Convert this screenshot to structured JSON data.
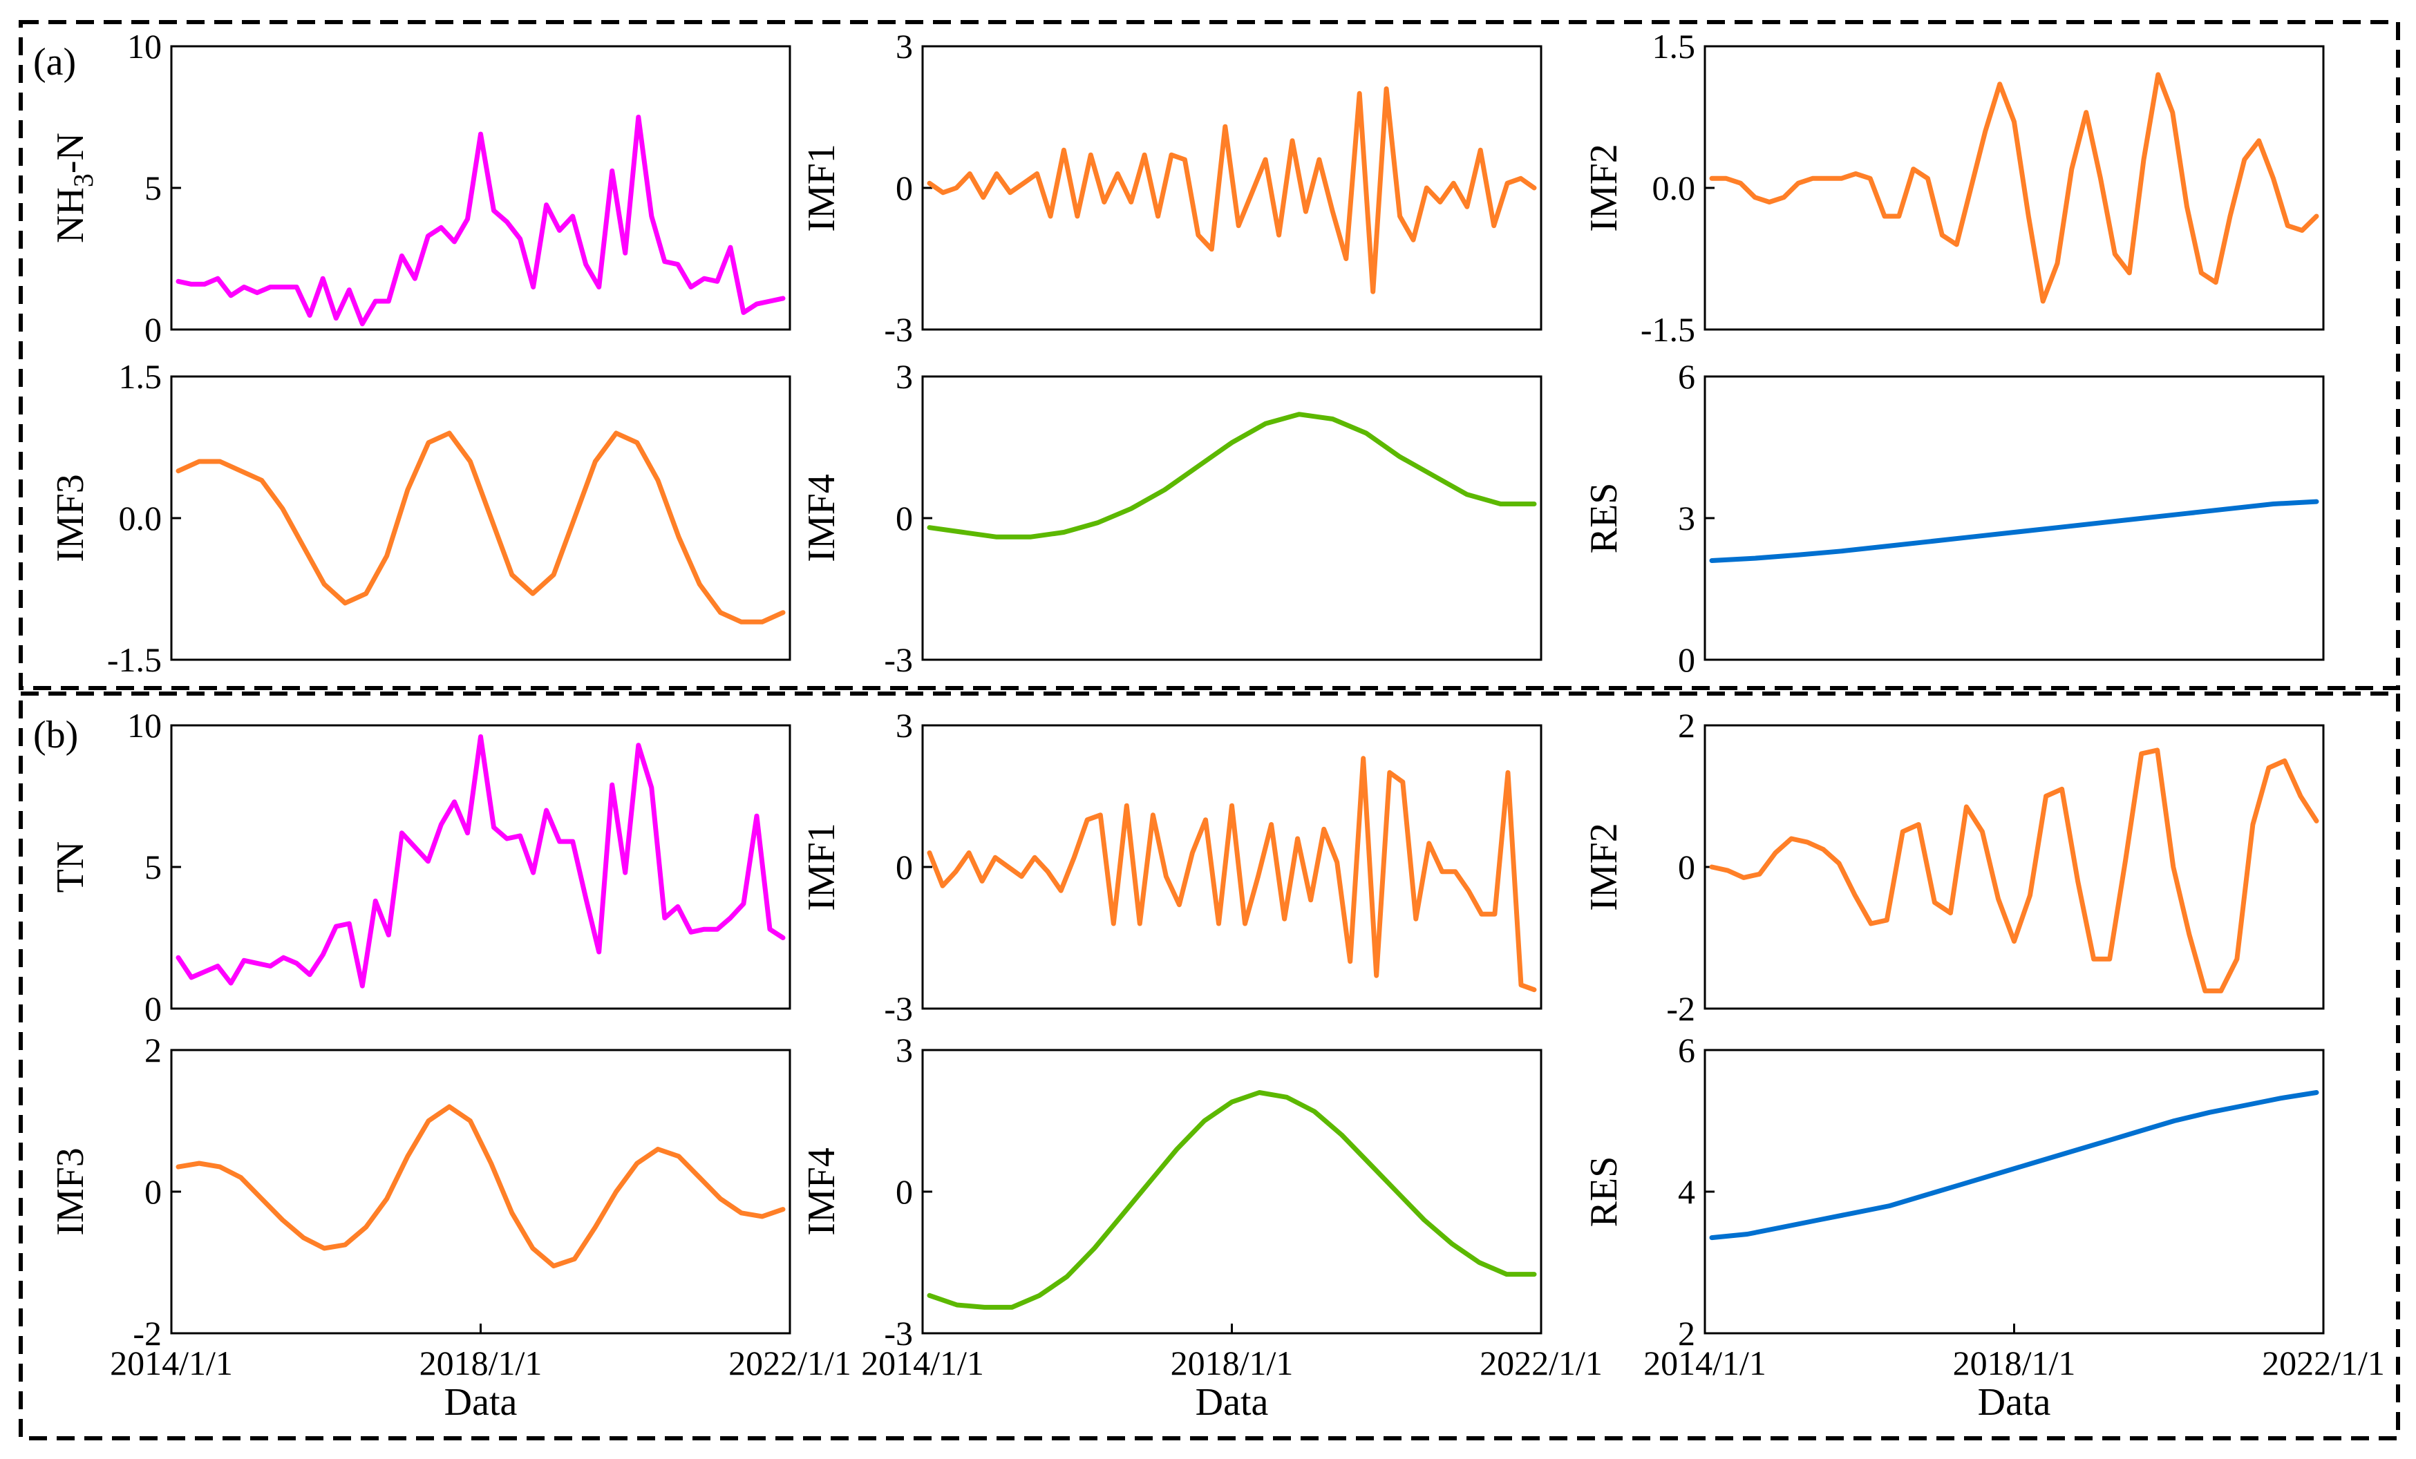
{
  "figure": {
    "panel_labels": [
      "(a)",
      "(b)"
    ],
    "colors": {
      "magenta": "#ff00ff",
      "orange": "#ff7f27",
      "green": "#5cb800",
      "blue": "#0070d0"
    }
  },
  "chart_data": [
    {
      "id": "a1",
      "type": "line",
      "ylabel": "NH3-N",
      "ylabel_main": "NH",
      "ylabel_sub": "3",
      "ylabel_tail": "-N",
      "ylim": [
        0,
        10
      ],
      "yticks": [
        "0",
        "5",
        "10"
      ],
      "xticks": [],
      "xlabel": "",
      "color": "#ff00ff",
      "values": [
        1.7,
        1.6,
        1.6,
        1.8,
        1.2,
        1.5,
        1.3,
        1.5,
        1.5,
        1.5,
        0.5,
        1.8,
        0.4,
        1.4,
        0.2,
        1.0,
        1.0,
        2.6,
        1.8,
        3.3,
        3.6,
        3.1,
        3.9,
        6.9,
        4.2,
        3.8,
        3.2,
        1.5,
        4.4,
        3.5,
        4.0,
        2.3,
        1.5,
        5.6,
        2.7,
        7.5,
        4.0,
        2.4,
        2.3,
        1.5,
        1.8,
        1.7,
        2.9,
        0.6,
        0.9,
        1.0,
        1.1
      ]
    },
    {
      "id": "a2",
      "type": "line",
      "ylabel": "IMF1",
      "ylim": [
        -3,
        3
      ],
      "yticks": [
        "-3",
        "0",
        "3"
      ],
      "xticks": [],
      "xlabel": "",
      "color": "#ff7f27",
      "values": [
        0.1,
        -0.1,
        0.0,
        0.3,
        -0.2,
        0.3,
        -0.1,
        0.1,
        0.3,
        -0.6,
        0.8,
        -0.6,
        0.7,
        -0.3,
        0.3,
        -0.3,
        0.7,
        -0.6,
        0.7,
        0.6,
        -1.0,
        -1.3,
        1.3,
        -0.8,
        -0.1,
        0.6,
        -1.0,
        1.0,
        -0.5,
        0.6,
        -0.5,
        -1.5,
        2.0,
        -2.2,
        2.1,
        -0.6,
        -1.1,
        0.0,
        -0.3,
        0.1,
        -0.4,
        0.8,
        -0.8,
        0.1,
        0.2,
        0.0
      ]
    },
    {
      "id": "a3",
      "type": "line",
      "ylabel": "IMF2",
      "ylim": [
        -1.5,
        1.5
      ],
      "yticks": [
        "-1.5",
        "0.0",
        "1.5"
      ],
      "xticks": [],
      "xlabel": "",
      "color": "#ff7f27",
      "values": [
        0.1,
        0.1,
        0.05,
        -0.1,
        -0.15,
        -0.1,
        0.05,
        0.1,
        0.1,
        0.1,
        0.15,
        0.1,
        -0.3,
        -0.3,
        0.2,
        0.1,
        -0.5,
        -0.6,
        0.0,
        0.6,
        1.1,
        0.7,
        -0.3,
        -1.2,
        -0.8,
        0.2,
        0.8,
        0.1,
        -0.7,
        -0.9,
        0.3,
        1.2,
        0.8,
        -0.2,
        -0.9,
        -1.0,
        -0.3,
        0.3,
        0.5,
        0.1,
        -0.4,
        -0.45,
        -0.3
      ]
    },
    {
      "id": "a4",
      "type": "line",
      "ylabel": "IMF3",
      "ylim": [
        -1.5,
        1.5
      ],
      "yticks": [
        "-1.5",
        "0.0",
        "1.5"
      ],
      "xticks": [],
      "xlabel": "",
      "color": "#ff7f27",
      "values": [
        0.5,
        0.6,
        0.6,
        0.5,
        0.4,
        0.1,
        -0.3,
        -0.7,
        -0.9,
        -0.8,
        -0.4,
        0.3,
        0.8,
        0.9,
        0.6,
        0.0,
        -0.6,
        -0.8,
        -0.6,
        0.0,
        0.6,
        0.9,
        0.8,
        0.4,
        -0.2,
        -0.7,
        -1.0,
        -1.1,
        -1.1,
        -1.0
      ]
    },
    {
      "id": "a5",
      "type": "line",
      "ylabel": "IMF4",
      "ylim": [
        -3,
        3
      ],
      "yticks": [
        "-3",
        "0",
        "3"
      ],
      "xticks": [],
      "xlabel": "",
      "color": "#5cb800",
      "values": [
        -0.2,
        -0.3,
        -0.4,
        -0.4,
        -0.3,
        -0.1,
        0.2,
        0.6,
        1.1,
        1.6,
        2.0,
        2.2,
        2.1,
        1.8,
        1.3,
        0.9,
        0.5,
        0.3,
        0.3
      ]
    },
    {
      "id": "a6",
      "type": "line",
      "ylabel": "RES",
      "ylim": [
        0,
        6
      ],
      "yticks": [
        "0",
        "3",
        "6"
      ],
      "xticks": [],
      "xlabel": "",
      "color": "#0070d0",
      "values": [
        2.1,
        2.15,
        2.22,
        2.3,
        2.4,
        2.5,
        2.6,
        2.7,
        2.8,
        2.9,
        3.0,
        3.1,
        3.2,
        3.3,
        3.35
      ]
    },
    {
      "id": "b1",
      "type": "line",
      "ylabel": "TN",
      "ylim": [
        0,
        10
      ],
      "yticks": [
        "0",
        "5",
        "10"
      ],
      "xticks": [],
      "xlabel": "",
      "color": "#ff00ff",
      "values": [
        1.8,
        1.1,
        1.3,
        1.5,
        0.9,
        1.7,
        1.6,
        1.5,
        1.8,
        1.6,
        1.2,
        1.9,
        2.9,
        3.0,
        0.8,
        3.8,
        2.6,
        6.2,
        5.7,
        5.2,
        6.5,
        7.3,
        6.2,
        9.6,
        6.4,
        6.0,
        6.1,
        4.8,
        7.0,
        5.9,
        5.9,
        3.9,
        2.0,
        7.9,
        4.8,
        9.3,
        7.8,
        3.2,
        3.6,
        2.7,
        2.8,
        2.8,
        3.2,
        3.7,
        6.8,
        2.8,
        2.5
      ]
    },
    {
      "id": "b2",
      "type": "line",
      "ylabel": "IMF1",
      "ylim": [
        -3,
        3
      ],
      "yticks": [
        "-3",
        "0",
        "3"
      ],
      "xticks": [],
      "xlabel": "",
      "color": "#ff7f27",
      "values": [
        0.3,
        -0.4,
        -0.1,
        0.3,
        -0.3,
        0.2,
        0.0,
        -0.2,
        0.2,
        -0.1,
        -0.5,
        0.2,
        1.0,
        1.1,
        -1.2,
        1.3,
        -1.2,
        1.1,
        -0.2,
        -0.8,
        0.3,
        1.0,
        -1.2,
        1.3,
        -1.2,
        -0.2,
        0.9,
        -1.1,
        0.6,
        -0.7,
        0.8,
        0.1,
        -2.0,
        2.3,
        -2.3,
        2.0,
        1.8,
        -1.1,
        0.5,
        -0.1,
        -0.1,
        -0.5,
        -1.0,
        -1.0,
        2.0,
        -2.5,
        -2.6
      ]
    },
    {
      "id": "b3",
      "type": "line",
      "ylabel": "IMF2",
      "ylim": [
        -2,
        2
      ],
      "yticks": [
        "-2",
        "0",
        "2"
      ],
      "xticks": [],
      "xlabel": "",
      "color": "#ff7f27",
      "values": [
        0.0,
        -0.05,
        -0.15,
        -0.1,
        0.2,
        0.4,
        0.35,
        0.25,
        0.05,
        -0.4,
        -0.8,
        -0.75,
        0.5,
        0.6,
        -0.5,
        -0.65,
        0.85,
        0.5,
        -0.45,
        -1.05,
        -0.4,
        1.0,
        1.1,
        -0.2,
        -1.3,
        -1.3,
        0.1,
        1.6,
        1.65,
        0.0,
        -0.95,
        -1.75,
        -1.75,
        -1.3,
        0.6,
        1.4,
        1.5,
        1.0,
        0.65
      ]
    },
    {
      "id": "b4",
      "type": "line",
      "ylabel": "IMF3",
      "ylim": [
        -2,
        2
      ],
      "yticks": [
        "-2",
        "0",
        "2"
      ],
      "xticks": [
        "2014/1/1",
        "2018/1/1",
        "2022/1/1"
      ],
      "xlabel": "Data",
      "color": "#ff7f27",
      "values": [
        0.35,
        0.4,
        0.35,
        0.2,
        -0.1,
        -0.4,
        -0.65,
        -0.8,
        -0.75,
        -0.5,
        -0.1,
        0.5,
        1.0,
        1.2,
        1.0,
        0.4,
        -0.3,
        -0.8,
        -1.05,
        -0.95,
        -0.5,
        0.0,
        0.4,
        0.6,
        0.5,
        0.2,
        -0.1,
        -0.3,
        -0.35,
        -0.25
      ]
    },
    {
      "id": "b5",
      "type": "line",
      "ylabel": "IMF4",
      "ylim": [
        -3,
        3
      ],
      "yticks": [
        "-3",
        "0",
        "3"
      ],
      "xticks": [
        "2014/1/1",
        "2018/1/1",
        "2022/1/1"
      ],
      "xlabel": "Data",
      "color": "#5cb800",
      "values": [
        -2.2,
        -2.4,
        -2.45,
        -2.45,
        -2.2,
        -1.8,
        -1.2,
        -0.5,
        0.2,
        0.9,
        1.5,
        1.9,
        2.1,
        2.0,
        1.7,
        1.2,
        0.6,
        0.0,
        -0.6,
        -1.1,
        -1.5,
        -1.75,
        -1.75
      ]
    },
    {
      "id": "b6",
      "type": "line",
      "ylabel": "RES",
      "ylim": [
        2,
        6
      ],
      "yticks": [
        "2",
        "4",
        "6"
      ],
      "xticks": [
        "2014/1/1",
        "2018/1/1",
        "2022/1/1"
      ],
      "xlabel": "Data",
      "color": "#0070d0",
      "values": [
        3.35,
        3.4,
        3.5,
        3.6,
        3.7,
        3.8,
        3.95,
        4.1,
        4.25,
        4.4,
        4.55,
        4.7,
        4.85,
        5.0,
        5.12,
        5.22,
        5.32,
        5.4
      ]
    }
  ]
}
